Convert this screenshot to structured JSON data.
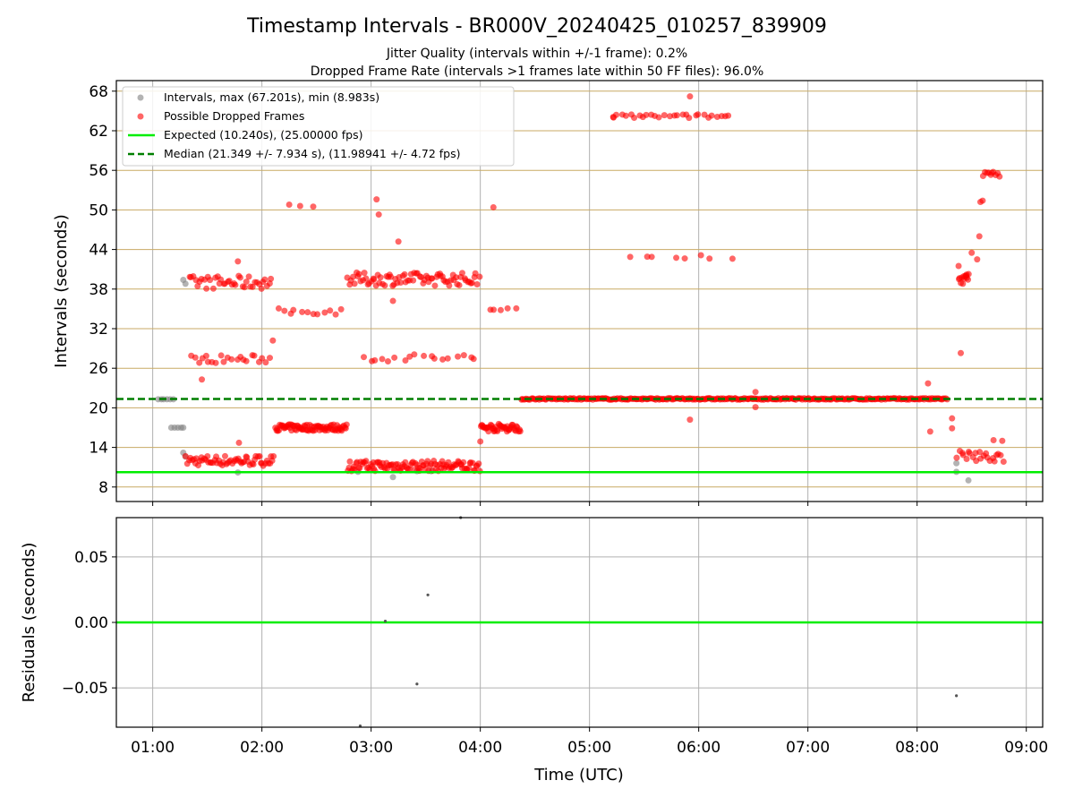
{
  "chart_data": [
    {
      "type": "scatter",
      "title": "Timestamp Intervals - BR000V_20240425_010257_839909",
      "subtitles": [
        "Jitter Quality (intervals within +/-1 frame): 0.2%",
        "Dropped Frame Rate (intervals >1 frames late within 50 FF files): 96.0%"
      ],
      "ylabel": "Intervals (seconds)",
      "xlim": [
        0.667,
        9.15
      ],
      "ylim": [
        5.8,
        69.6
      ],
      "yticks": [
        8,
        14,
        20,
        26,
        32,
        38,
        44,
        50,
        56,
        62,
        68
      ],
      "grid": true,
      "legend_placement": "upper-left",
      "legend": [
        "Intervals, max (67.201s), min (8.983s)",
        "Possible Dropped Frames",
        "Expected (10.240s), (25.00000 fps)",
        "Median (21.349 +/- 7.934 s), (11.98941 +/- 4.72 fps)"
      ],
      "colors": {
        "intervals": "#808080",
        "dropped": "#ff0000",
        "expected": "#00ee00",
        "median": "#007f00",
        "grid_h": "#c8aa64",
        "grid_v": "#b0b0b0"
      },
      "expected_y": 10.24,
      "median_y": 21.349,
      "series": [
        {
          "name": "Intervals, max (67.201s), min (8.983s)",
          "points": [
            [
              1.05,
              21.3
            ],
            [
              1.08,
              21.3
            ],
            [
              1.1,
              21.3
            ],
            [
              1.13,
              21.3
            ],
            [
              1.16,
              21.3
            ],
            [
              1.19,
              21.3
            ],
            [
              1.17,
              17.0
            ],
            [
              1.2,
              17.0
            ],
            [
              1.23,
              17.0
            ],
            [
              1.26,
              17.0
            ],
            [
              1.28,
              17.0
            ],
            [
              1.28,
              39.4
            ],
            [
              1.3,
              38.8
            ],
            [
              1.28,
              13.2
            ],
            [
              1.3,
              12.6
            ],
            [
              1.78,
              10.2
            ],
            [
              2.88,
              10.3
            ],
            [
              3.2,
              9.5
            ],
            [
              3.42,
              10.4
            ],
            [
              3.55,
              10.4
            ],
            [
              8.36,
              10.3
            ],
            [
              8.47,
              9.0
            ],
            [
              8.36,
              11.6
            ]
          ]
        },
        {
          "name": "Possible Dropped Frames",
          "bands": [
            {
              "from": 1.3,
              "to": 2.12,
              "y": 12.0,
              "spread": 0.8,
              "n": 60
            },
            {
              "from": 1.33,
              "to": 2.1,
              "y": 39.0,
              "spread": 1.0,
              "n": 40
            },
            {
              "from": 1.33,
              "to": 2.1,
              "y": 27.4,
              "spread": 0.6,
              "n": 22
            },
            {
              "from": 2.12,
              "to": 2.78,
              "y": 17.0,
              "spread": 0.5,
              "n": 80
            },
            {
              "from": 2.12,
              "to": 2.78,
              "y": 34.6,
              "spread": 0.5,
              "n": 12
            },
            {
              "from": 2.78,
              "to": 4.0,
              "y": 11.2,
              "spread": 0.8,
              "n": 110
            },
            {
              "from": 2.78,
              "to": 4.0,
              "y": 39.5,
              "spread": 1.0,
              "n": 80
            },
            {
              "from": 2.9,
              "to": 4.0,
              "y": 27.6,
              "spread": 0.6,
              "n": 18
            },
            {
              "from": 4.0,
              "to": 4.37,
              "y": 17.0,
              "spread": 0.6,
              "n": 45
            },
            {
              "from": 4.05,
              "to": 4.35,
              "y": 34.8,
              "spread": 0.3,
              "n": 5
            },
            {
              "from": 4.37,
              "to": 8.28,
              "y": 21.35,
              "spread": 0.12,
              "n": 340
            },
            {
              "from": 5.2,
              "to": 6.3,
              "y": 64.2,
              "spread": 0.3,
              "n": 28
            },
            {
              "from": 5.3,
              "to": 6.35,
              "y": 42.9,
              "spread": 0.3,
              "n": 8
            },
            {
              "from": 8.38,
              "to": 8.48,
              "y": 39.5,
              "spread": 1.0,
              "n": 12
            },
            {
              "from": 8.36,
              "to": 8.8,
              "y": 12.6,
              "spread": 0.9,
              "n": 22
            },
            {
              "from": 8.6,
              "to": 8.76,
              "y": 55.4,
              "spread": 0.4,
              "n": 10
            }
          ],
          "points": [
            [
              1.78,
              42.2
            ],
            [
              1.79,
              14.7
            ],
            [
              1.45,
              24.3
            ],
            [
              2.1,
              30.2
            ],
            [
              2.25,
              50.8
            ],
            [
              2.35,
              50.6
            ],
            [
              2.47,
              50.5
            ],
            [
              3.05,
              51.6
            ],
            [
              3.07,
              49.3
            ],
            [
              3.25,
              45.2
            ],
            [
              3.2,
              36.2
            ],
            [
              4.12,
              50.4
            ],
            [
              4.0,
              14.9
            ],
            [
              5.22,
              64.0
            ],
            [
              5.92,
              67.2
            ],
            [
              5.92,
              18.2
            ],
            [
              6.52,
              22.4
            ],
            [
              6.52,
              20.1
            ],
            [
              8.1,
              23.7
            ],
            [
              8.12,
              16.4
            ],
            [
              8.32,
              18.4
            ],
            [
              8.32,
              16.9
            ],
            [
              8.4,
              28.3
            ],
            [
              8.55,
              42.5
            ],
            [
              8.57,
              46.0
            ],
            [
              8.58,
              51.2
            ],
            [
              8.6,
              51.4
            ],
            [
              8.38,
              41.5
            ],
            [
              8.45,
              40.0
            ],
            [
              8.5,
              43.5
            ],
            [
              8.7,
              15.1
            ],
            [
              8.78,
              15.0
            ]
          ]
        },
        {
          "name": "Expected (10.240s), (25.00000 fps)",
          "y": 10.24
        },
        {
          "name": "Median (21.349 +/- 7.934 s), (11.98941 +/- 4.72 fps)",
          "y": 21.349
        }
      ]
    },
    {
      "type": "scatter",
      "xlabel": "Time (UTC)",
      "ylabel": "Residuals (seconds)",
      "xlim": [
        0.667,
        9.15
      ],
      "ylim": [
        -0.08,
        0.08
      ],
      "yticks": [
        0.05,
        0.0,
        -0.05
      ],
      "ytick_labels": [
        "0.05",
        "0.00",
        "−0.05"
      ],
      "xtick_values": [
        1,
        2,
        3,
        4,
        5,
        6,
        7,
        8,
        9
      ],
      "xtick_labels": [
        "01:00",
        "02:00",
        "03:00",
        "04:00",
        "05:00",
        "06:00",
        "07:00",
        "08:00",
        "09:00"
      ],
      "grid": true,
      "zero_line_color": "#00ee00",
      "points": [
        [
          3.52,
          0.021
        ],
        [
          3.13,
          0.001
        ],
        [
          3.42,
          -0.047
        ],
        [
          8.36,
          -0.056
        ],
        [
          2.9,
          -0.079
        ],
        [
          3.82,
          0.08
        ]
      ]
    }
  ]
}
